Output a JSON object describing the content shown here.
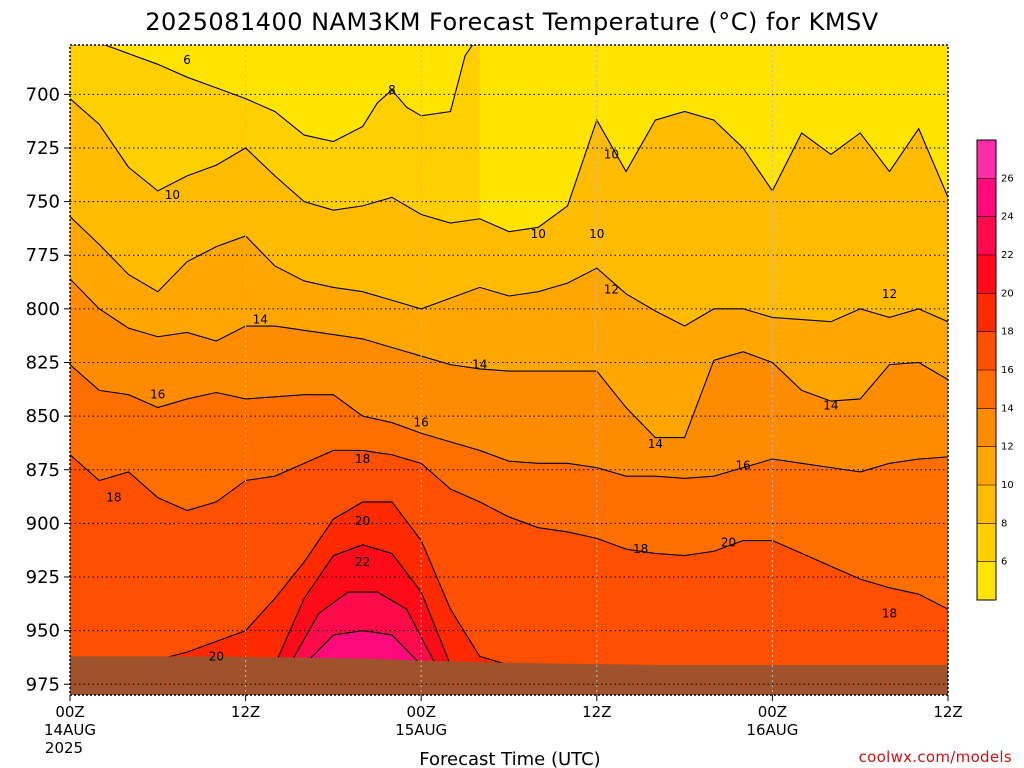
{
  "chart_data": {
    "type": "contour",
    "title": "2025081400 NAM3KM Forecast Temperature (°C) for KMSV",
    "xlabel": "Forecast Time (UTC)",
    "ylabel": "",
    "y_axis": {
      "ticks": [
        700,
        725,
        750,
        775,
        800,
        825,
        850,
        875,
        900,
        925,
        950,
        975
      ],
      "reversed": true
    },
    "x_axis": {
      "ticks": [
        {
          "hour": 0,
          "label": "00Z",
          "date": "14AUG",
          "year": "2025"
        },
        {
          "hour": 12,
          "label": "12Z",
          "date": "",
          "year": ""
        },
        {
          "hour": 24,
          "label": "00Z",
          "date": "15AUG",
          "year": ""
        },
        {
          "hour": 36,
          "label": "12Z",
          "date": "",
          "year": ""
        },
        {
          "hour": 48,
          "label": "00Z",
          "date": "16AUG",
          "year": ""
        },
        {
          "hour": 60,
          "label": "12Z",
          "date": "",
          "year": ""
        }
      ]
    },
    "colorbar": {
      "levels": [
        6,
        8,
        10,
        12,
        14,
        16,
        18,
        20,
        22,
        24,
        26
      ],
      "colors": [
        "#ffe400",
        "#ffcf00",
        "#ffbb00",
        "#ffa600",
        "#ff8c00",
        "#ff6f00",
        "#ff4f00",
        "#ff2a00",
        "#ff0a18",
        "#ff0a4a",
        "#ff0a7a",
        "#ff2ea8"
      ]
    },
    "contours": [
      {
        "level": 8,
        "color_below": "#ffe400",
        "color_above": "#ffcf00",
        "points": [
          [
            0,
            677
          ],
          [
            2,
            676
          ],
          [
            4,
            681
          ],
          [
            6,
            686
          ],
          [
            8,
            692
          ],
          [
            10,
            697
          ],
          [
            12,
            702
          ],
          [
            14,
            708
          ],
          [
            16,
            719
          ],
          [
            18,
            722
          ],
          [
            20,
            715
          ],
          [
            21,
            704
          ],
          [
            22,
            698
          ],
          [
            23,
            706
          ],
          [
            24,
            710
          ],
          [
            26,
            708
          ],
          [
            27,
            682
          ],
          [
            28,
            672
          ]
        ]
      },
      {
        "level": 10,
        "color_below": "#ffcf00",
        "color_above": "#ffbb00",
        "points": [
          [
            0,
            702
          ],
          [
            2,
            714
          ],
          [
            4,
            734
          ],
          [
            6,
            745
          ],
          [
            8,
            738
          ],
          [
            10,
            733
          ],
          [
            12,
            725
          ],
          [
            14,
            738
          ],
          [
            16,
            750
          ],
          [
            18,
            754
          ],
          [
            20,
            752
          ],
          [
            22,
            748
          ],
          [
            24,
            756
          ],
          [
            26,
            760
          ],
          [
            28,
            758
          ],
          [
            30,
            764
          ],
          [
            32,
            762
          ],
          [
            34,
            752
          ],
          [
            36,
            712
          ],
          [
            38,
            736
          ],
          [
            40,
            712
          ],
          [
            42,
            708
          ],
          [
            44,
            712
          ],
          [
            46,
            725
          ],
          [
            48,
            745
          ],
          [
            50,
            718
          ],
          [
            52,
            728
          ],
          [
            54,
            718
          ],
          [
            56,
            736
          ],
          [
            58,
            716
          ],
          [
            60,
            748
          ]
        ]
      },
      {
        "level": 12,
        "color_below": "#ffbb00",
        "color_above": "#ffa600",
        "points": [
          [
            0,
            757
          ],
          [
            2,
            770
          ],
          [
            4,
            784
          ],
          [
            6,
            792
          ],
          [
            8,
            778
          ],
          [
            10,
            771
          ],
          [
            12,
            766
          ],
          [
            14,
            780
          ],
          [
            16,
            787
          ],
          [
            18,
            790
          ],
          [
            20,
            792
          ],
          [
            22,
            796
          ],
          [
            24,
            800
          ],
          [
            26,
            795
          ],
          [
            28,
            790
          ],
          [
            30,
            794
          ],
          [
            32,
            792
          ],
          [
            34,
            788
          ],
          [
            36,
            781
          ],
          [
            38,
            793
          ],
          [
            40,
            801
          ],
          [
            42,
            808
          ],
          [
            44,
            800
          ],
          [
            46,
            800
          ],
          [
            48,
            804
          ],
          [
            50,
            805
          ],
          [
            52,
            806
          ],
          [
            54,
            800
          ],
          [
            56,
            804
          ],
          [
            58,
            800
          ],
          [
            60,
            806
          ]
        ]
      },
      {
        "level": 14,
        "color_below": "#ffa600",
        "color_above": "#ff8c00",
        "points": [
          [
            0,
            786
          ],
          [
            2,
            800
          ],
          [
            4,
            809
          ],
          [
            6,
            813
          ],
          [
            8,
            811
          ],
          [
            10,
            815
          ],
          [
            12,
            808
          ],
          [
            14,
            808
          ],
          [
            16,
            810
          ],
          [
            18,
            812
          ],
          [
            20,
            814
          ],
          [
            22,
            818
          ],
          [
            24,
            822
          ],
          [
            26,
            826
          ],
          [
            28,
            828
          ],
          [
            30,
            829
          ],
          [
            32,
            829
          ],
          [
            34,
            829
          ],
          [
            36,
            829
          ],
          [
            38,
            846
          ],
          [
            40,
            860
          ],
          [
            42,
            860
          ],
          [
            44,
            824
          ],
          [
            46,
            820
          ],
          [
            48,
            825
          ],
          [
            50,
            838
          ],
          [
            52,
            843
          ],
          [
            54,
            842
          ],
          [
            56,
            826
          ],
          [
            58,
            825
          ],
          [
            60,
            833
          ]
        ]
      },
      {
        "level": 16,
        "color_below": "#ff8c00",
        "color_above": "#ff6f00",
        "points": [
          [
            0,
            826
          ],
          [
            2,
            838
          ],
          [
            4,
            840
          ],
          [
            6,
            846
          ],
          [
            8,
            842
          ],
          [
            10,
            839
          ],
          [
            12,
            842
          ],
          [
            14,
            841
          ],
          [
            16,
            840
          ],
          [
            18,
            840
          ],
          [
            20,
            850
          ],
          [
            22,
            853
          ],
          [
            24,
            858
          ],
          [
            26,
            862
          ],
          [
            28,
            866
          ],
          [
            30,
            871
          ],
          [
            32,
            872
          ],
          [
            34,
            872
          ],
          [
            36,
            874
          ],
          [
            38,
            878
          ],
          [
            40,
            878
          ],
          [
            42,
            879
          ],
          [
            44,
            878
          ],
          [
            46,
            874
          ],
          [
            48,
            870
          ],
          [
            50,
            872
          ],
          [
            52,
            874
          ],
          [
            54,
            876
          ],
          [
            56,
            872
          ],
          [
            58,
            870
          ],
          [
            60,
            869
          ]
        ]
      },
      {
        "level": 18,
        "color_below": "#ff6f00",
        "color_above": "#ff4f00",
        "points": [
          [
            0,
            868
          ],
          [
            2,
            880
          ],
          [
            4,
            876
          ],
          [
            6,
            888
          ],
          [
            8,
            894
          ],
          [
            10,
            890
          ],
          [
            12,
            880
          ],
          [
            14,
            878
          ],
          [
            16,
            872
          ],
          [
            18,
            866
          ],
          [
            20,
            866
          ],
          [
            22,
            868
          ],
          [
            24,
            872
          ],
          [
            26,
            884
          ],
          [
            28,
            890
          ],
          [
            30,
            897
          ],
          [
            32,
            902
          ],
          [
            34,
            904
          ],
          [
            36,
            907
          ],
          [
            38,
            912
          ],
          [
            40,
            914
          ],
          [
            42,
            915
          ],
          [
            44,
            913
          ],
          [
            46,
            908
          ],
          [
            48,
            908
          ],
          [
            50,
            914
          ],
          [
            52,
            920
          ],
          [
            54,
            926
          ],
          [
            56,
            930
          ],
          [
            58,
            933
          ],
          [
            60,
            940
          ]
        ]
      },
      {
        "level": 20,
        "color_below": "#ff4f00",
        "color_above": "#ff2a00",
        "points": [
          [
            4,
            967
          ],
          [
            8,
            960
          ],
          [
            12,
            950
          ],
          [
            14,
            935
          ],
          [
            16,
            918
          ],
          [
            18,
            898
          ],
          [
            20,
            890
          ],
          [
            22,
            890
          ],
          [
            24,
            908
          ],
          [
            26,
            940
          ],
          [
            28,
            962
          ],
          [
            30,
            966
          ]
        ],
        "label_at": 0
      },
      {
        "level": 22,
        "color_below": "#ff2a00",
        "color_above": "#ff0a18",
        "points": [
          [
            14,
            966
          ],
          [
            16,
            935
          ],
          [
            18,
            915
          ],
          [
            20,
            910
          ],
          [
            22,
            914
          ],
          [
            24,
            932
          ],
          [
            26,
            966
          ]
        ]
      },
      {
        "level": 24,
        "color_below": "#ff0a18",
        "color_above": "#ff0a4a",
        "points": [
          [
            15,
            966
          ],
          [
            17,
            942
          ],
          [
            19,
            932
          ],
          [
            21,
            932
          ],
          [
            23,
            940
          ],
          [
            25,
            966
          ]
        ]
      },
      {
        "level": 26,
        "color_below": "#ff0a4a",
        "color_above": "#ff0a7a",
        "points": [
          [
            16,
            966
          ],
          [
            18,
            952
          ],
          [
            20,
            950
          ],
          [
            22,
            952
          ],
          [
            24,
            966
          ]
        ]
      }
    ],
    "contour_labels": [
      {
        "x": 8.0,
        "y": 684,
        "text": "6"
      },
      {
        "x": 22.0,
        "y": 698,
        "text": "8"
      },
      {
        "x": 7.0,
        "y": 747,
        "text": "10"
      },
      {
        "x": 32.0,
        "y": 765,
        "text": "10"
      },
      {
        "x": 36.0,
        "y": 765,
        "text": "10"
      },
      {
        "x": 37.0,
        "y": 728,
        "text": "10"
      },
      {
        "x": 37.0,
        "y": 791,
        "text": "12"
      },
      {
        "x": 56.0,
        "y": 793,
        "text": "12"
      },
      {
        "x": 13.0,
        "y": 805,
        "text": "14"
      },
      {
        "x": 28.0,
        "y": 826,
        "text": "14"
      },
      {
        "x": 40.0,
        "y": 863,
        "text": "14"
      },
      {
        "x": 52.0,
        "y": 845,
        "text": "14"
      },
      {
        "x": 6.0,
        "y": 840,
        "text": "16"
      },
      {
        "x": 24.0,
        "y": 853,
        "text": "16"
      },
      {
        "x": 46.0,
        "y": 873,
        "text": "16"
      },
      {
        "x": 3.0,
        "y": 888,
        "text": "18"
      },
      {
        "x": 20.0,
        "y": 870,
        "text": "18"
      },
      {
        "x": 39.0,
        "y": 912,
        "text": "18"
      },
      {
        "x": 56.0,
        "y": 942,
        "text": "18"
      },
      {
        "x": 20.0,
        "y": 899,
        "text": "20"
      },
      {
        "x": 45.0,
        "y": 909,
        "text": "20"
      },
      {
        "x": 10.0,
        "y": 962,
        "text": "20"
      },
      {
        "x": 20.0,
        "y": 918,
        "text": "22"
      }
    ],
    "ground": {
      "color": "#a0522d",
      "surface_pressure": [
        [
          0,
          962
        ],
        [
          10,
          962
        ],
        [
          20,
          963
        ],
        [
          24,
          964
        ],
        [
          30,
          965
        ],
        [
          40,
          966
        ],
        [
          50,
          966
        ],
        [
          60,
          966
        ]
      ]
    }
  },
  "credit": "coolwx.com/models"
}
